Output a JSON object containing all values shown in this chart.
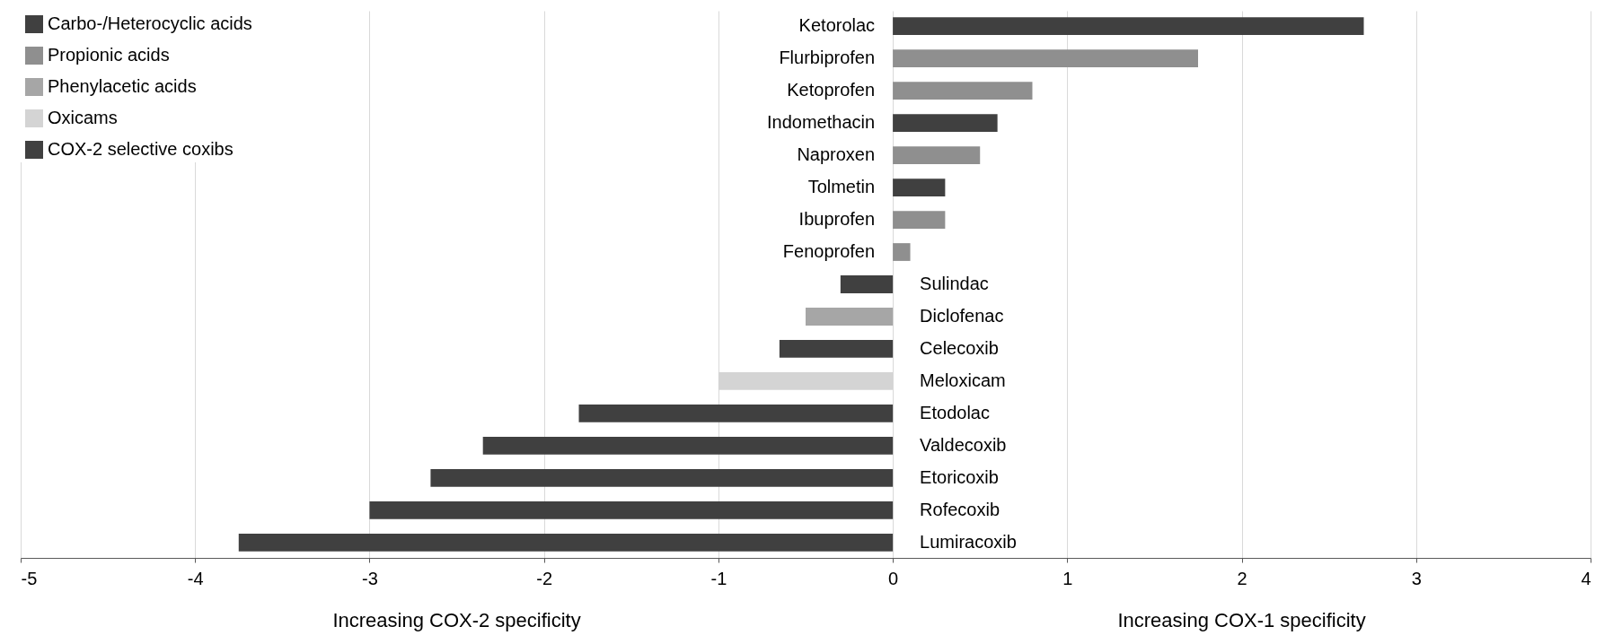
{
  "chart_data": {
    "type": "bar",
    "orientation": "horizontal",
    "categories": [
      "Ketorolac",
      "Flurbiprofen",
      "Ketoprofen",
      "Indomethacin",
      "Naproxen",
      "Tolmetin",
      "Ibuprofen",
      "Fenoprofen",
      "Sulindac",
      "Diclofenac",
      "Celecoxib",
      "Meloxicam",
      "Etodolac",
      "Valdecoxib",
      "Etoricoxib",
      "Rofecoxib",
      "Lumiracoxib"
    ],
    "series": [
      {
        "name": "Carbo-/Heterocyclic acids",
        "color": "#404040",
        "values": [
          2.7,
          null,
          null,
          0.6,
          null,
          0.3,
          null,
          null,
          -0.3,
          null,
          null,
          null,
          -1.8,
          null,
          null,
          null,
          null
        ]
      },
      {
        "name": "Propionic acids",
        "color": "#8f8f8f",
        "values": [
          null,
          1.75,
          0.8,
          null,
          0.5,
          null,
          0.3,
          0.1,
          null,
          null,
          null,
          null,
          null,
          null,
          null,
          null,
          null
        ]
      },
      {
        "name": "Phenylacetic acids",
        "color": "#a6a6a6",
        "values": [
          null,
          null,
          null,
          null,
          null,
          null,
          null,
          null,
          null,
          -0.5,
          null,
          null,
          null,
          null,
          null,
          null,
          null
        ]
      },
      {
        "name": "Oxicams",
        "color": "#d4d4d4",
        "values": [
          null,
          null,
          null,
          null,
          null,
          null,
          null,
          null,
          null,
          null,
          null,
          -1.0,
          null,
          null,
          null,
          null,
          null
        ]
      },
      {
        "name": "COX-2 selective coxibs",
        "color": "#404040",
        "values": [
          null,
          null,
          null,
          null,
          null,
          null,
          null,
          null,
          null,
          null,
          -0.65,
          null,
          null,
          -2.35,
          -2.65,
          -3.0,
          -3.75
        ]
      }
    ],
    "xlim": [
      -5,
      4
    ],
    "xticks": [
      -5,
      -4,
      -3,
      -2,
      -1,
      0,
      1,
      2,
      3,
      4
    ],
    "grid": "x",
    "legend": "top left",
    "annotations": [
      "Increasing COX-2 specificity",
      "Increasing COX-1 specificity"
    ]
  }
}
